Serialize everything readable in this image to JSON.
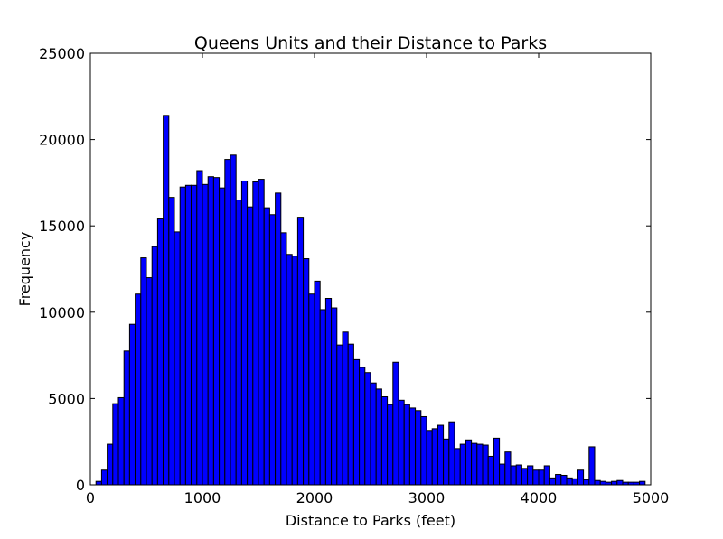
{
  "chart_data": {
    "type": "bar",
    "title": "Queens Units and their Distance to Parks",
    "xlabel": "Distance to Parks (feet)",
    "ylabel": "Frequency",
    "xlim": [
      0,
      5000
    ],
    "ylim": [
      0,
      25000
    ],
    "xticks": [
      0,
      1000,
      2000,
      3000,
      4000,
      5000
    ],
    "xtick_labels": [
      "0",
      "1000",
      "2000",
      "3000",
      "4000",
      "5000"
    ],
    "yticks": [
      0,
      5000,
      10000,
      15000,
      20000,
      25000
    ],
    "ytick_labels": [
      "0",
      "5000",
      "10000",
      "15000",
      "20000",
      "25000"
    ],
    "bin_width": 50,
    "bar_color": "#0000ff",
    "edge_color": "#000000",
    "grid": false,
    "bins_start": [
      0,
      50,
      100,
      150,
      200,
      250,
      300,
      350,
      400,
      450,
      500,
      550,
      600,
      650,
      700,
      750,
      800,
      850,
      900,
      950,
      1000,
      1050,
      1100,
      1150,
      1200,
      1250,
      1300,
      1350,
      1400,
      1450,
      1500,
      1550,
      1600,
      1650,
      1700,
      1750,
      1800,
      1850,
      1900,
      1950,
      2000,
      2050,
      2100,
      2150,
      2200,
      2250,
      2300,
      2350,
      2400,
      2450,
      2500,
      2550,
      2600,
      2650,
      2700,
      2750,
      2800,
      2850,
      2900,
      2950,
      3000,
      3050,
      3100,
      3150,
      3200,
      3250,
      3300,
      3350,
      3400,
      3450,
      3500,
      3550,
      3600,
      3650,
      3700,
      3750,
      3800,
      3850,
      3900,
      3950,
      4000,
      4050,
      4100,
      4150,
      4200,
      4250,
      4300,
      4350,
      4400,
      4450,
      4500,
      4550,
      4600,
      4650,
      4700,
      4750,
      4800,
      4850,
      4900,
      4950
    ],
    "values": [
      0,
      200,
      850,
      2350,
      4700,
      5050,
      7750,
      9300,
      11050,
      13150,
      12000,
      13800,
      15400,
      21400,
      16650,
      14650,
      17250,
      17350,
      17350,
      18200,
      17400,
      17850,
      17800,
      17200,
      18850,
      19100,
      16500,
      17600,
      16100,
      17550,
      17700,
      16050,
      15650,
      16900,
      14600,
      13350,
      13250,
      15500,
      13100,
      11050,
      11800,
      10150,
      10800,
      10250,
      8100,
      8850,
      8150,
      7250,
      6800,
      6500,
      5900,
      5550,
      5100,
      4650,
      7100,
      4900,
      4650,
      4450,
      4300,
      3950,
      3150,
      3250,
      3450,
      2650,
      3650,
      2100,
      2350,
      2600,
      2400,
      2350,
      2300,
      1650,
      2700,
      1200,
      1900,
      1100,
      1150,
      950,
      1100,
      850,
      850,
      1100,
      400,
      600,
      550,
      400,
      350,
      850,
      300,
      2200,
      250,
      200,
      150,
      200,
      250,
      150,
      150,
      150,
      200,
      0
    ]
  }
}
